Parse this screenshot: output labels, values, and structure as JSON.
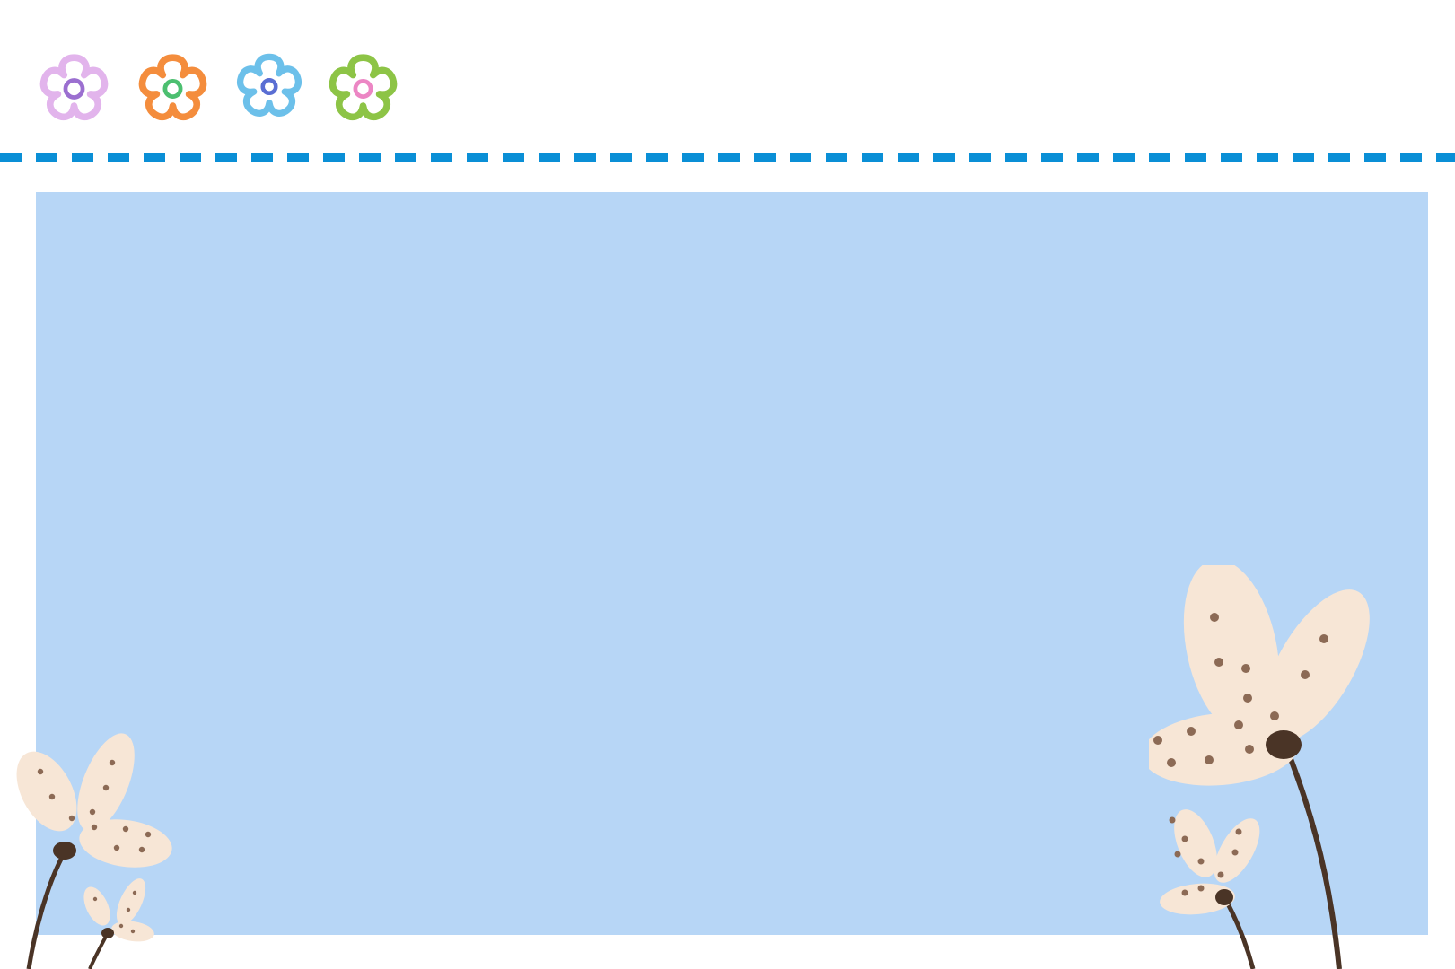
{
  "colors": {
    "background": "#ffffff",
    "panel": "#b7d6f6",
    "dashes": "#0a8fd6",
    "petal": "#f7e6d6",
    "stem": "#4a3426",
    "spot": "#8c6a55"
  },
  "header_flowers": [
    {
      "icon": "outline-flower-icon",
      "outline": "#e2b4ec",
      "center": "#9b6fd0"
    },
    {
      "icon": "outline-flower-icon",
      "outline": "#f48d3d",
      "center": "#4cbf70"
    },
    {
      "icon": "outline-flower-icon",
      "outline": "#6cc0ea",
      "center": "#5a6ed3"
    },
    {
      "icon": "outline-flower-icon",
      "outline": "#8dc446",
      "center": "#ec86c4"
    }
  ],
  "decorations": {
    "left": "dotted-flower-icon",
    "right": "dotted-flower-icon"
  }
}
